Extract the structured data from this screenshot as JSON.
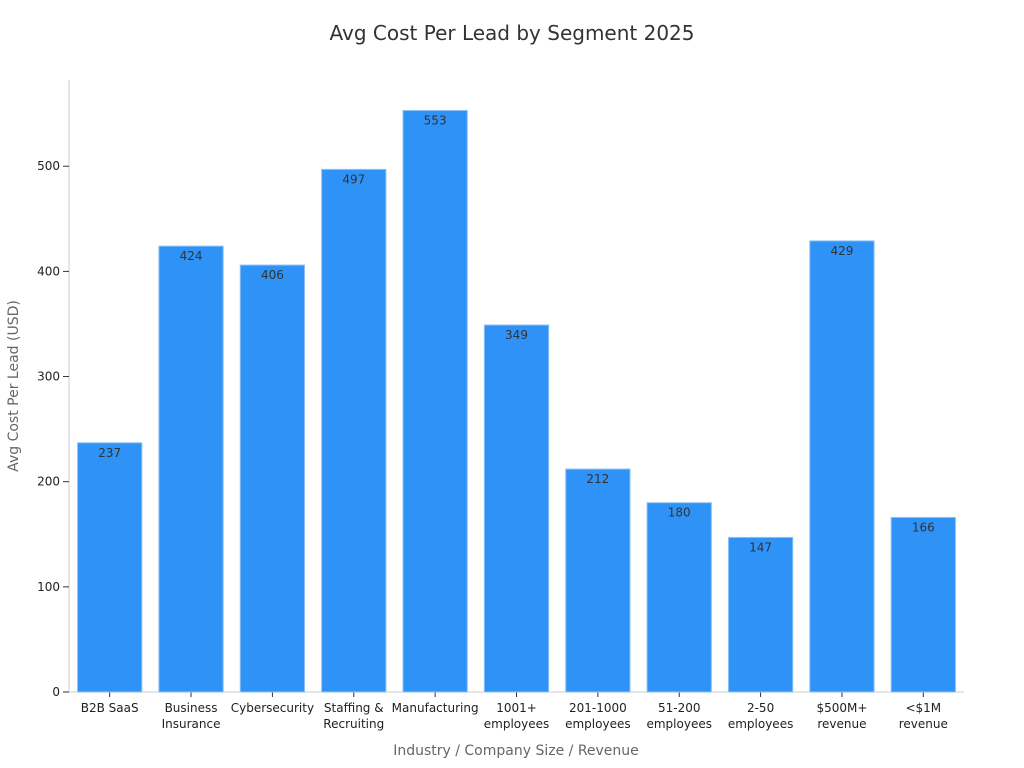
{
  "chart_data": {
    "type": "bar",
    "title": "Avg Cost Per Lead by Segment 2025",
    "xlabel": "Industry / Company Size / Revenue",
    "ylabel": "Avg Cost Per Lead (USD)",
    "categories": [
      [
        "B2B SaaS"
      ],
      [
        "Business",
        "Insurance"
      ],
      [
        "Cybersecurity"
      ],
      [
        "Staffing &",
        "Recruiting"
      ],
      [
        "Manufacturing"
      ],
      [
        "1001+",
        "employees"
      ],
      [
        "201-1000",
        "employees"
      ],
      [
        "51-200",
        "employees"
      ],
      [
        "2-50",
        "employees"
      ],
      [
        "$500M+",
        "revenue"
      ],
      [
        "<$1M",
        "revenue"
      ]
    ],
    "values": [
      237,
      424,
      406,
      497,
      553,
      349,
      212,
      180,
      147,
      429,
      166
    ],
    "ylim": [
      0,
      582
    ],
    "yticks": [
      0,
      100,
      200,
      300,
      400,
      500
    ],
    "grid": false,
    "colors": {
      "bar": "#2f92f7",
      "bar_edge": "#8ec2f7",
      "axis": "#cccccc"
    }
  }
}
